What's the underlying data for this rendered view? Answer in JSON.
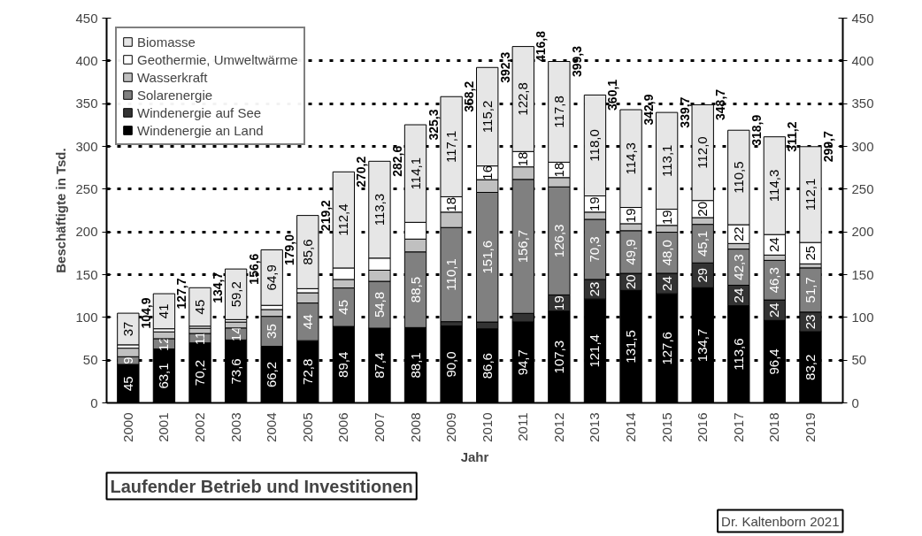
{
  "chart_data": {
    "type": "bar",
    "stacked": true,
    "xlabel": "Jahr",
    "ylabel": "Beschäftigte in Tsd.",
    "categories": [
      "2000",
      "2001",
      "2002",
      "2003",
      "2004",
      "2005",
      "2006",
      "2007",
      "2008",
      "2009",
      "2010",
      "2011",
      "2012",
      "2013",
      "2014",
      "2015",
      "2016",
      "2017",
      "2018",
      "2019"
    ],
    "series": [
      {
        "name": "Windenergie an Land",
        "color": "#000000",
        "values": [
          45,
          63.1,
          70.2,
          73.6,
          66.2,
          72.8,
          89.4,
          87.4,
          88.1,
          90.0,
          86.6,
          94.7,
          107.3,
          121.4,
          131.5,
          127.6,
          134.7,
          113.6,
          96.4,
          83.2
        ],
        "value_labels": [
          "45",
          "63,1",
          "70,2",
          "73,6",
          "66,2",
          "72,8",
          "89,4",
          "87,4",
          "88,1",
          "90,0",
          "86,6",
          "94,7",
          "107,3",
          "121,4",
          "131,5",
          "127,6",
          "134,7",
          "113,6",
          "96,4",
          "83,2"
        ]
      },
      {
        "name": "Windenergie auf See",
        "color": "#333333",
        "values": [
          0,
          0,
          0,
          0,
          0,
          0,
          0,
          0,
          0,
          5,
          8,
          10,
          19,
          23,
          20,
          24,
          29,
          24,
          24,
          23
        ],
        "value_labels": [
          null,
          null,
          null,
          null,
          null,
          null,
          null,
          null,
          null,
          null,
          null,
          null,
          "19",
          "23",
          "20",
          "24",
          "29",
          "24",
          "24",
          "23"
        ]
      },
      {
        "name": "Solarenergie",
        "color": "#808080",
        "values": [
          9,
          12,
          11,
          14,
          35,
          44,
          45,
          54.8,
          88.5,
          110.1,
          151.6,
          156.7,
          126.3,
          70.3,
          49.9,
          48.0,
          45.1,
          42.3,
          46.3,
          51.7
        ],
        "value_labels": [
          "9",
          "12",
          "11",
          "14",
          "35",
          "44",
          "45",
          "54,8",
          "88,5",
          "110,1",
          "151,6",
          "156,7",
          "126,3",
          "70,3",
          "49,9",
          "48,0",
          "45,1",
          "42,3",
          "46,3",
          "51,7"
        ]
      },
      {
        "name": "Wasserkraft",
        "color": "#c0c0c0",
        "values": [
          10,
          8,
          6,
          7,
          8,
          12,
          10,
          13,
          15,
          18,
          14.9,
          14.6,
          10.9,
          8.4,
          8.2,
          8,
          7.9,
          6.5,
          6.2,
          4.7
        ]
      },
      {
        "name": "Geothermie, Umweltwärme",
        "color": "#ffffff",
        "values": [
          3.9,
          3.6,
          2.5,
          2.8,
          4.9,
          4.8,
          13.4,
          14.1,
          19.6,
          18,
          16,
          18,
          18,
          19,
          19,
          19,
          20,
          22,
          24,
          25
        ],
        "value_labels": [
          null,
          null,
          null,
          null,
          null,
          null,
          null,
          null,
          null,
          "18",
          "16",
          "18",
          "18",
          "19",
          "19",
          "19",
          "20",
          "22",
          "24",
          "25"
        ]
      },
      {
        "name": "Biomasse",
        "color": "#e6e6e6",
        "values": [
          37,
          41,
          45,
          59.2,
          64.9,
          85.6,
          112.4,
          113.3,
          114.1,
          117.1,
          115.2,
          122.8,
          117.8,
          118.0,
          114.3,
          113.1,
          112.0,
          110.5,
          114.3,
          112.1
        ],
        "value_labels": [
          "37",
          "41",
          "45",
          "59,2",
          "64,9",
          "85,6",
          "112,4",
          "113,3",
          "114,1",
          "117,1",
          "115,2",
          "122,8",
          "117,8",
          "118,0",
          "114,3",
          "113,1",
          "112,0",
          "110,5",
          "114,3",
          "112,1"
        ]
      }
    ],
    "totals": [
      "104,9",
      "127,7",
      "134,7",
      "156,6",
      "179,0",
      "219,2",
      "270,2",
      "282,6",
      "325,3",
      "358,2",
      "392,3",
      "416,8",
      "399,3",
      "360,1",
      "342,9",
      "339,7",
      "348,7",
      "318,9",
      "311,2",
      "299,7"
    ],
    "ylim": [
      0,
      450
    ],
    "yticks": [
      0,
      50,
      100,
      150,
      200,
      250,
      300,
      350,
      400,
      450
    ],
    "y2lim": [
      0,
      450
    ],
    "y2ticks": [
      0,
      50,
      100,
      150,
      200,
      250,
      300,
      350,
      400,
      450
    ],
    "grid": "y",
    "legend": "top left",
    "annotations": [
      "Laufender Betrieb und Investitionen",
      "Dr. Kaltenborn 2021"
    ]
  }
}
